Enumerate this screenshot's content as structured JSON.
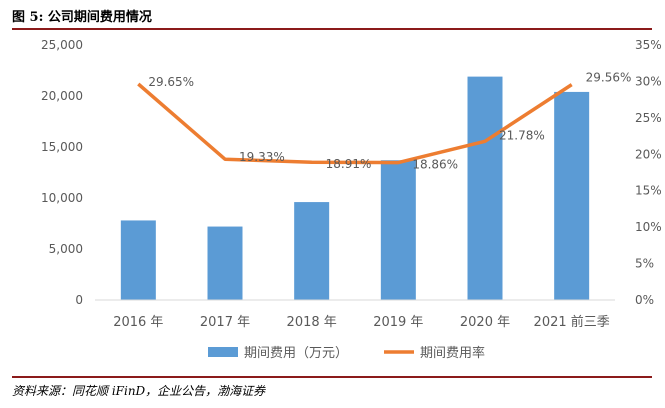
{
  "header": {
    "title": "图 5:  公司期间费用情况"
  },
  "footer": {
    "source": "资料来源：同花顺 iFinD，企业公告，渤海证券"
  },
  "chart_data": {
    "type": "bar",
    "categories": [
      "2016 年",
      "2017 年",
      "2018 年",
      "2019 年",
      "2020 年",
      "2021 前三季"
    ],
    "series": [
      {
        "name": "期间费用（万元）",
        "type": "bar",
        "axis": "left",
        "color": "#5b9bd5",
        "values": [
          7800,
          7200,
          9600,
          13700,
          21900,
          20400
        ]
      },
      {
        "name": "期间费用率",
        "type": "line",
        "axis": "right",
        "color": "#ed7d31",
        "values": [
          29.65,
          19.33,
          18.91,
          18.86,
          21.78,
          29.56
        ],
        "labels": [
          "29.65%",
          "19.33%",
          "18.91%",
          "18.86%",
          "21.78%",
          "29.56%"
        ]
      }
    ],
    "left_axis": {
      "ylim": [
        0,
        25000
      ],
      "ticks": [
        0,
        5000,
        10000,
        15000,
        20000,
        25000
      ],
      "tick_labels": [
        "0",
        "5,000",
        "10,000",
        "15,000",
        "20,000",
        "25,000"
      ]
    },
    "right_axis": {
      "ylim": [
        0,
        35
      ],
      "ticks": [
        0,
        5,
        10,
        15,
        20,
        25,
        30,
        35
      ],
      "tick_labels": [
        "0%",
        "5%",
        "10%",
        "15%",
        "20%",
        "25%",
        "30%",
        "35%"
      ]
    },
    "grid": false,
    "legend": "bottom"
  }
}
